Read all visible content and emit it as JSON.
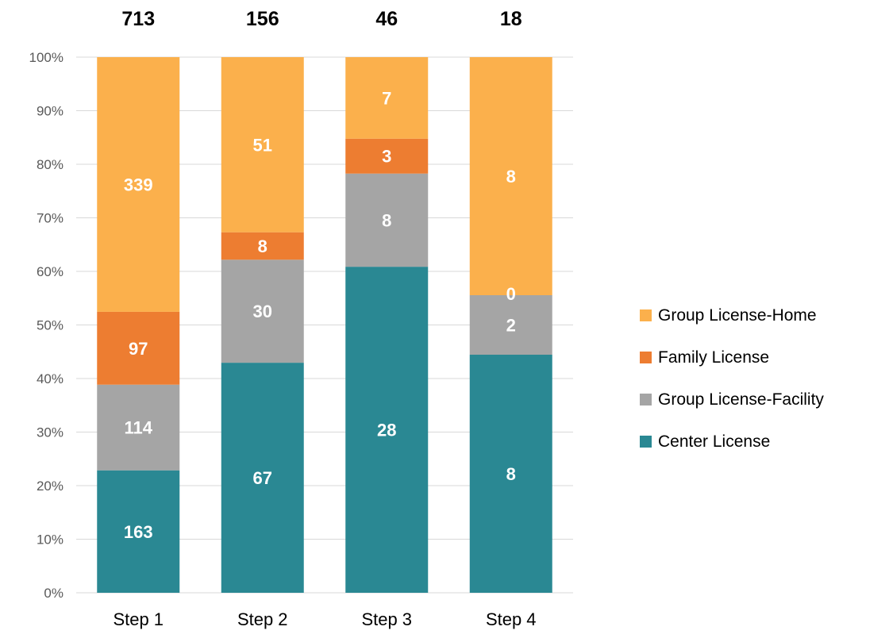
{
  "chart_data": {
    "type": "bar",
    "stacked": true,
    "normalized": true,
    "title": "",
    "xlabel": "",
    "ylabel": "",
    "ylim": [
      0,
      100
    ],
    "y_ticks": [
      "0%",
      "10%",
      "20%",
      "30%",
      "40%",
      "50%",
      "60%",
      "70%",
      "80%",
      "90%",
      "100%"
    ],
    "grid": true,
    "legend_position": "right",
    "categories": [
      "Step 1",
      "Step 2",
      "Step 3",
      "Step 4"
    ],
    "totals": [
      "713",
      "156",
      "46",
      "18"
    ],
    "series": [
      {
        "name": "Center License",
        "color": "#2a8893",
        "values": [
          163,
          67,
          28,
          8
        ],
        "labels": [
          "163",
          "67",
          "28",
          "8"
        ]
      },
      {
        "name": "Group License-Facility",
        "color": "#a5a5a5",
        "values": [
          114,
          30,
          8,
          2
        ],
        "labels": [
          "114",
          "30",
          "8",
          "2"
        ]
      },
      {
        "name": "Family License",
        "color": "#ed7d31",
        "values": [
          97,
          8,
          3,
          0
        ],
        "labels": [
          "97",
          "8",
          "3",
          "0"
        ]
      },
      {
        "name": "Group License-Home",
        "color": "#fbb04c",
        "values": [
          339,
          51,
          7,
          8
        ],
        "labels": [
          "339",
          "51",
          "7",
          "8"
        ]
      }
    ],
    "legend_order": [
      "Group License-Home",
      "Family License",
      "Group License-Facility",
      "Center License"
    ]
  }
}
